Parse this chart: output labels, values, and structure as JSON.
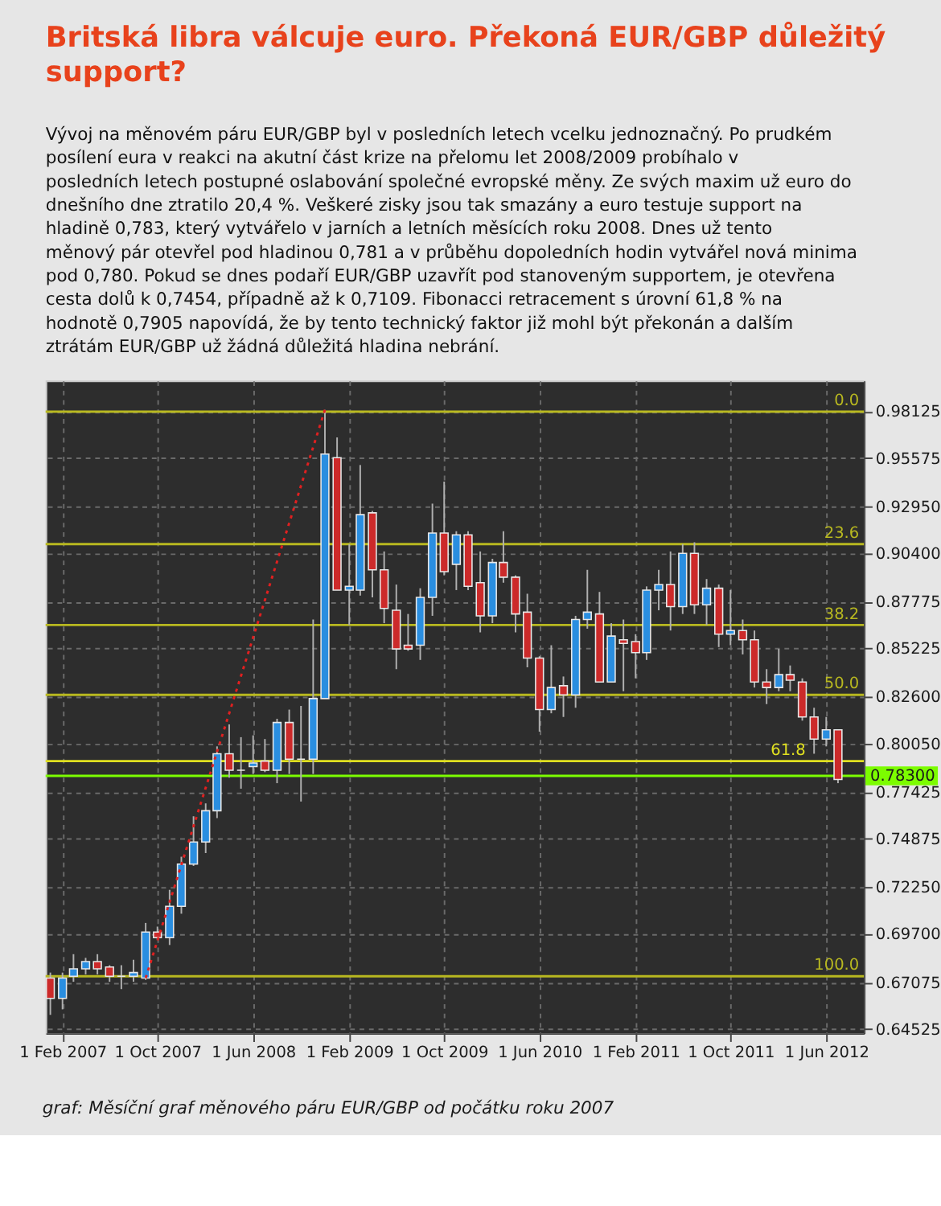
{
  "chart_data": {
    "type": "candlestick",
    "title": "Britská libra válcuje euro. Překoná EUR/GBP důležitý support?",
    "subtitle": "Vývoj na měnovém páru EUR/GBP byl v posledních letech vcelku jednoznačný. Po prudkém posílení eura v reakci na akutní část krize na přelomu let 2008/2009 probíhalo v posledních letech postupné oslabování společné evropské měny. Ze svých maxim už euro do dnešního dne ztratilo 20,4 %. Veškeré zisky jsou tak smazány a euro testuje support na hladině 0,783, který vytvářelo v jarních a letních měsících roku 2008. Dnes už tento měnový pár otevřel pod hladinou 0,781 a v průběhu dopoledních hodin vytvářel nová minima pod 0,780. Pokud se dnes podaří EUR/GBP uzavřít pod stanoveným supportem, je otevřena cesta dolů k 0,7454, případně až k 0,7109. Fibonacci retracement s úrovní 61,8 % na hodnotě 0,7905 napovídá, že by tento technický faktor již mohl být překonán a dalším ztrátám EUR/GBP už žádná důležitá hladina nebrání.",
    "annotations": [
      "graf: Měsíční graf měnového páru EUR/GBP od počátku roku 2007",
      {
        "text": "0.0",
        "y": 0.981
      },
      {
        "text": "23.6",
        "y": 0.909
      },
      {
        "text": "38.2",
        "y": 0.865
      },
      {
        "text": "50.0",
        "y": 0.827
      },
      {
        "text": "61.8",
        "y": 0.791
      },
      {
        "text": "100.0",
        "y": 0.674
      }
    ],
    "x": [
      "2007-01",
      "2007-02",
      "2007-03",
      "2007-04",
      "2007-05",
      "2007-06",
      "2007-07",
      "2007-08",
      "2007-09",
      "2007-10",
      "2007-11",
      "2007-12",
      "2008-01",
      "2008-02",
      "2008-03",
      "2008-04",
      "2008-05",
      "2008-06",
      "2008-07",
      "2008-08",
      "2008-09",
      "2008-10",
      "2008-11",
      "2008-12",
      "2009-01",
      "2009-02",
      "2009-03",
      "2009-04",
      "2009-05",
      "2009-06",
      "2009-07",
      "2009-08",
      "2009-09",
      "2009-10",
      "2009-11",
      "2009-12",
      "2010-01",
      "2010-02",
      "2010-03",
      "2010-04",
      "2010-05",
      "2010-06",
      "2010-07",
      "2010-08",
      "2010-09",
      "2010-10",
      "2010-11",
      "2010-12",
      "2011-01",
      "2011-02",
      "2011-03",
      "2011-04",
      "2011-05",
      "2011-06",
      "2011-07",
      "2011-08",
      "2011-09",
      "2011-10",
      "2011-11",
      "2011-12",
      "2012-01",
      "2012-02",
      "2012-03",
      "2012-04",
      "2012-05",
      "2012-06",
      "2012-07"
    ],
    "ohlc": [
      [
        0.673,
        0.676,
        0.653,
        0.662
      ],
      [
        0.662,
        0.676,
        0.656,
        0.673
      ],
      [
        0.674,
        0.686,
        0.671,
        0.678
      ],
      [
        0.678,
        0.684,
        0.675,
        0.682
      ],
      [
        0.682,
        0.686,
        0.675,
        0.678
      ],
      [
        0.679,
        0.68,
        0.671,
        0.674
      ],
      [
        0.674,
        0.68,
        0.667,
        0.674
      ],
      [
        0.674,
        0.683,
        0.671,
        0.676
      ],
      [
        0.673,
        0.703,
        0.672,
        0.698
      ],
      [
        0.698,
        0.701,
        0.694,
        0.695
      ],
      [
        0.695,
        0.721,
        0.691,
        0.712
      ],
      [
        0.712,
        0.739,
        0.708,
        0.735
      ],
      [
        0.735,
        0.761,
        0.734,
        0.747
      ],
      [
        0.747,
        0.768,
        0.741,
        0.764
      ],
      [
        0.764,
        0.799,
        0.76,
        0.795
      ],
      [
        0.795,
        0.811,
        0.782,
        0.786
      ],
      [
        0.786,
        0.804,
        0.776,
        0.786
      ],
      [
        0.788,
        0.805,
        0.784,
        0.79
      ],
      [
        0.791,
        0.803,
        0.785,
        0.786
      ],
      [
        0.786,
        0.814,
        0.779,
        0.812
      ],
      [
        0.812,
        0.819,
        0.784,
        0.792
      ],
      [
        0.792,
        0.821,
        0.769,
        0.792
      ],
      [
        0.792,
        0.868,
        0.784,
        0.825
      ],
      [
        0.825,
        0.982,
        0.825,
        0.958
      ],
      [
        0.956,
        0.967,
        0.884,
        0.884
      ],
      [
        0.884,
        0.909,
        0.865,
        0.886
      ],
      [
        0.884,
        0.952,
        0.881,
        0.925
      ],
      [
        0.926,
        0.927,
        0.88,
        0.895
      ],
      [
        0.895,
        0.905,
        0.866,
        0.874
      ],
      [
        0.873,
        0.887,
        0.841,
        0.852
      ],
      [
        0.854,
        0.871,
        0.851,
        0.852
      ],
      [
        0.854,
        0.885,
        0.846,
        0.88
      ],
      [
        0.88,
        0.931,
        0.87,
        0.915
      ],
      [
        0.915,
        0.943,
        0.892,
        0.894
      ],
      [
        0.898,
        0.916,
        0.884,
        0.914
      ],
      [
        0.914,
        0.916,
        0.884,
        0.886
      ],
      [
        0.888,
        0.905,
        0.861,
        0.87
      ],
      [
        0.87,
        0.901,
        0.866,
        0.899
      ],
      [
        0.899,
        0.916,
        0.888,
        0.891
      ],
      [
        0.891,
        0.892,
        0.861,
        0.871
      ],
      [
        0.872,
        0.882,
        0.842,
        0.847
      ],
      [
        0.847,
        0.848,
        0.807,
        0.819
      ],
      [
        0.819,
        0.854,
        0.817,
        0.831
      ],
      [
        0.832,
        0.837,
        0.815,
        0.827
      ],
      [
        0.827,
        0.87,
        0.82,
        0.868
      ],
      [
        0.868,
        0.895,
        0.863,
        0.872
      ],
      [
        0.871,
        0.883,
        0.834,
        0.834
      ],
      [
        0.834,
        0.866,
        0.834,
        0.859
      ],
      [
        0.857,
        0.868,
        0.829,
        0.855
      ],
      [
        0.856,
        0.86,
        0.836,
        0.85
      ],
      [
        0.85,
        0.886,
        0.846,
        0.884
      ],
      [
        0.884,
        0.895,
        0.873,
        0.887
      ],
      [
        0.887,
        0.905,
        0.862,
        0.875
      ],
      [
        0.875,
        0.909,
        0.871,
        0.904
      ],
      [
        0.904,
        0.91,
        0.871,
        0.876
      ],
      [
        0.876,
        0.89,
        0.865,
        0.885
      ],
      [
        0.885,
        0.887,
        0.853,
        0.86
      ],
      [
        0.86,
        0.884,
        0.854,
        0.862
      ],
      [
        0.862,
        0.868,
        0.849,
        0.857
      ],
      [
        0.857,
        0.862,
        0.831,
        0.834
      ],
      [
        0.834,
        0.841,
        0.822,
        0.831
      ],
      [
        0.831,
        0.852,
        0.829,
        0.838
      ],
      [
        0.838,
        0.843,
        0.829,
        0.835
      ],
      [
        0.834,
        0.836,
        0.813,
        0.815
      ],
      [
        0.815,
        0.82,
        0.795,
        0.803
      ],
      [
        0.803,
        0.815,
        0.799,
        0.808
      ],
      [
        0.808,
        0.808,
        0.779,
        0.781
      ]
    ],
    "xlim": [
      "2006-12-20",
      "2012-09-05"
    ],
    "ylim": [
      0.643,
      0.998
    ],
    "xticks": [
      {
        "value": "2007-02-01",
        "label": "1 Feb 2007"
      },
      {
        "value": "2007-10-01",
        "label": "1 Oct 2007"
      },
      {
        "value": "2008-06-01",
        "label": "1 Jun 2008"
      },
      {
        "value": "2009-02-01",
        "label": "1 Feb 2009"
      },
      {
        "value": "2009-10-01",
        "label": "1 Oct 2009"
      },
      {
        "value": "2010-06-01",
        "label": "1 Jun 2010"
      },
      {
        "value": "2011-02-01",
        "label": "1 Feb 2011"
      },
      {
        "value": "2011-10-01",
        "label": "1 Oct 2011"
      },
      {
        "value": "2012-06-01",
        "label": "1 Jun 2012"
      }
    ],
    "yticks": [
      0.98125,
      0.95575,
      {
        "value": 0.9295,
        "label": "0.92950"
      },
      {
        "value": 0.904,
        "label": "0.90400"
      },
      0.87775,
      0.85225,
      {
        "value": 0.826,
        "label": "0.82600"
      },
      {
        "value": 0.8005,
        "label": "0.80050"
      },
      0.77425,
      0.74875,
      {
        "value": 0.7225,
        "label": "0.72250"
      },
      {
        "value": 0.697,
        "label": "0.69700"
      },
      0.67075,
      0.64525
    ],
    "grid": true,
    "ref_lines": [
      {
        "axis": "y",
        "value": 0.981,
        "color": "#b8b820"
      },
      {
        "axis": "y",
        "value": 0.909,
        "color": "#b8b820"
      },
      {
        "axis": "y",
        "value": 0.865,
        "color": "#b8b820"
      },
      {
        "axis": "y",
        "value": 0.827,
        "color": "#b8b820"
      },
      {
        "axis": "y",
        "value": 0.791,
        "color": "#e0e020"
      },
      {
        "axis": "y",
        "value": 0.674,
        "color": "#b8b820"
      },
      {
        "axis": "y",
        "value": 0.783,
        "label": "0.78300",
        "color": "#7cfc00"
      }
    ],
    "series": [
      {
        "type": "line",
        "color": "#e02020",
        "line_style": "dotted",
        "x": [
          "2007-09",
          "2008-12"
        ],
        "values": [
          0.673,
          0.982
        ]
      }
    ]
  }
}
